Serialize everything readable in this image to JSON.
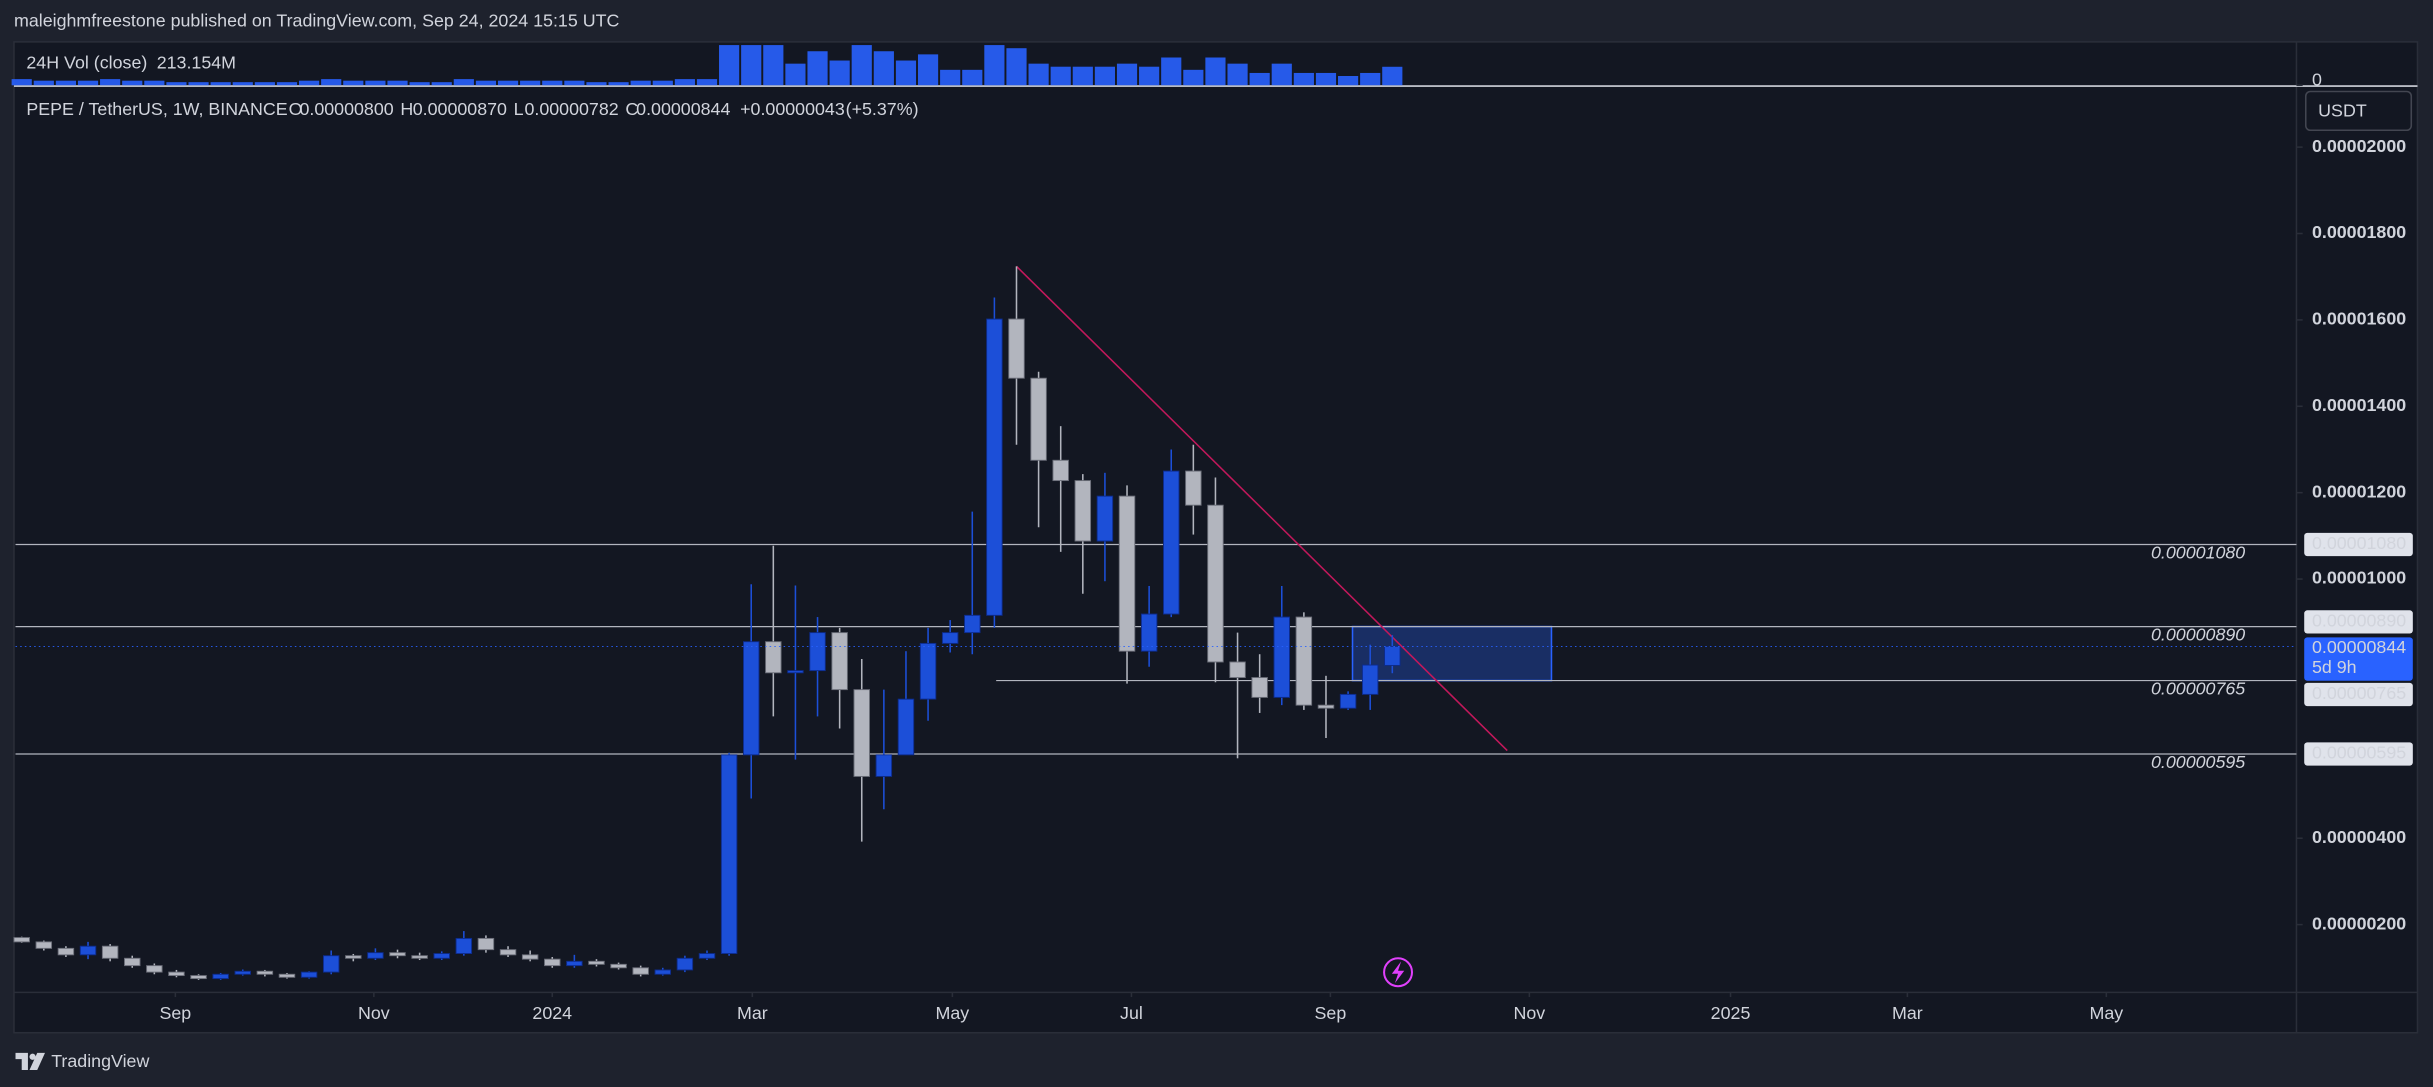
{
  "header": "maleighmfreestone published on TradingView.com, Sep 24, 2024 15:15 UTC",
  "footer": "TradingView",
  "chart_data": {
    "type": "candlestick",
    "symbol": "PEPE / TetherUS, 1W, BINANCE",
    "legend": {
      "open_key": "O",
      "open": {
        "value": 8e-06,
        "label": "0.00000800"
      },
      "high_key": "H",
      "high": {
        "value": 8.7e-06,
        "label": "0.00000870"
      },
      "low_key": "L",
      "low": {
        "value": 7.82e-06,
        "label": "0.00000782"
      },
      "close_key": "C",
      "close": {
        "value": 8.44e-06,
        "label": "0.00000844"
      },
      "change": {
        "value": 4.3e-07,
        "label": "+0.00000043"
      },
      "change_percent": {
        "value": 5.37,
        "label": "(+5.37%)"
      }
    },
    "currency": "USDT",
    "countdown": "5d 9h",
    "up_color": "#1c4fd8",
    "down_color": "#b2b5be",
    "open": [
      1.7e-06,
      1.6e-06,
      1.45e-06,
      1.3e-06,
      1.5e-06,
      1.22e-06,
      1.05e-06,
      9e-07,
      8.2e-07,
      7.5e-07,
      8.5e-07,
      9.2e-07,
      8.5e-07,
      7.8e-07,
      9e-07,
      1.28e-06,
      1.22e-06,
      1.35e-06,
      1.28e-06,
      1.22e-06,
      1.33e-06,
      1.68e-06,
      1.42e-06,
      1.3e-06,
      1.2e-06,
      1.05e-06,
      1.15e-06,
      1.08e-06,
      1e-06,
      8.5e-07,
      9.5e-07,
      1.22e-06,
      1.33e-06,
      5.93e-06,
      8.55e-06,
      7.83e-06,
      7.88e-06,
      8.76e-06,
      7.44e-06,
      5.43e-06,
      5.93e-06,
      7.22e-06,
      8.51e-06,
      8.76e-06,
      9.16e-06,
      1.602e-05,
      1.465e-05,
      1.275e-05,
      1.228e-05,
      1.088e-05,
      1.192e-05,
      8.33e-06,
      9.19e-06,
      1.25e-05,
      1.171e-05,
      8.08e-06,
      7.72e-06,
      7.26e-06,
      9.12e-06,
      7.08e-06,
      7.01e-06,
      7.33e-06,
      8e-06
    ],
    "high": [
      1.72e-06,
      1.63e-06,
      1.5e-06,
      1.6e-06,
      1.55e-06,
      1.28e-06,
      1.1e-06,
      9.5e-07,
      8.5e-07,
      8.8e-07,
      9.6e-07,
      9.5e-07,
      8.8e-07,
      9.2e-07,
      1.4e-06,
      1.32e-06,
      1.45e-06,
      1.42e-06,
      1.35e-06,
      1.38e-06,
      1.85e-06,
      1.75e-06,
      1.5e-06,
      1.4e-06,
      1.25e-06,
      1.3e-06,
      1.2e-06,
      1.12e-06,
      1.05e-06,
      1e-06,
      1.28e-06,
      1.4e-06,
      5.98e-06,
      9.88e-06,
      1.077e-05,
      9.85e-06,
      9.12e-06,
      8.87e-06,
      8.15e-06,
      7.44e-06,
      8.33e-06,
      8.87e-06,
      9.05e-06,
      1.156e-05,
      1.652e-05,
      1.724e-05,
      1.48e-05,
      1.354e-05,
      1.243e-05,
      1.246e-05,
      1.217e-05,
      9.84e-06,
      1.3e-05,
      1.311e-05,
      1.235e-05,
      8.76e-06,
      8.26e-06,
      9.84e-06,
      9.23e-06,
      7.76e-06,
      7.4e-06,
      8.48e-06,
      8.7e-06
    ],
    "low": [
      1.58e-06,
      1.4e-06,
      1.25e-06,
      1.2e-06,
      1.15e-06,
      1e-06,
      8.5e-07,
      7.8e-07,
      7.2e-07,
      7.2e-07,
      8.2e-07,
      8e-07,
      7.5e-07,
      7.5e-07,
      8.5e-07,
      1.15e-06,
      1.18e-06,
      1.22e-06,
      1.18e-06,
      1.18e-06,
      1.28e-06,
      1.35e-06,
      1.25e-06,
      1.15e-06,
      1e-06,
      1e-06,
      1.03e-06,
      9.6e-07,
      8e-07,
      8.2e-07,
      9e-07,
      1.18e-06,
      1.28e-06,
      4.92e-06,
      6.82e-06,
      5.82e-06,
      6.82e-06,
      6.54e-06,
      3.92e-06,
      4.67e-06,
      5.93e-06,
      6.72e-06,
      8.3e-06,
      8.26e-06,
      8.87e-06,
      1.311e-05,
      1.12e-05,
      1.063e-05,
      9.66e-06,
      9.95e-06,
      7.58e-06,
      7.97e-06,
      9.12e-06,
      1.103e-05,
      7.61e-06,
      5.85e-06,
      6.9e-06,
      7.08e-06,
      6.97e-06,
      6.32e-06,
      6.97e-06,
      6.97e-06,
      7.82e-06
    ],
    "close": [
      1.6e-06,
      1.45e-06,
      1.3e-06,
      1.5e-06,
      1.22e-06,
      1.05e-06,
      9e-07,
      8.2e-07,
      7.5e-07,
      8.5e-07,
      9.2e-07,
      8.5e-07,
      7.8e-07,
      9e-07,
      1.28e-06,
      1.22e-06,
      1.35e-06,
      1.28e-06,
      1.22e-06,
      1.33e-06,
      1.68e-06,
      1.42e-06,
      1.3e-06,
      1.2e-06,
      1.05e-06,
      1.15e-06,
      1.08e-06,
      1e-06,
      8.5e-07,
      9.5e-07,
      1.22e-06,
      1.33e-06,
      5.93e-06,
      8.55e-06,
      7.83e-06,
      7.88e-06,
      8.76e-06,
      7.44e-06,
      5.43e-06,
      5.93e-06,
      7.22e-06,
      8.51e-06,
      8.76e-06,
      9.16e-06,
      1.602e-05,
      1.465e-05,
      1.275e-05,
      1.228e-05,
      1.088e-05,
      1.192e-05,
      8.33e-06,
      9.19e-06,
      1.25e-05,
      1.171e-05,
      8.08e-06,
      7.72e-06,
      7.26e-06,
      9.12e-06,
      7.08e-06,
      7.01e-06,
      7.33e-06,
      8.01e-06,
      8.44e-06
    ],
    "xlim": [
      -0.28,
      102.9
    ],
    "xticks": [
      {
        "value": 6.95,
        "label": "Sep"
      },
      {
        "value": 15.93,
        "label": "Nov"
      },
      {
        "value": 24.0,
        "label": "2024"
      },
      {
        "value": 33.05,
        "label": "Mar"
      },
      {
        "value": 42.1,
        "label": "May"
      },
      {
        "value": 50.2,
        "label": "Jul"
      },
      {
        "value": 59.2,
        "label": "Sep"
      },
      {
        "value": 68.2,
        "label": "Nov"
      },
      {
        "value": 77.3,
        "label": "2025"
      },
      {
        "value": 85.3,
        "label": "Mar"
      },
      {
        "value": 94.3,
        "label": "May"
      }
    ],
    "ylim": [
      4.3e-07,
      2.136e-05
    ],
    "yticks": [
      {
        "value": 2e-06,
        "label": "0.00000200"
      },
      {
        "value": 4e-06,
        "label": "0.00000400"
      },
      {
        "value": 1e-05,
        "label": "0.00001000"
      },
      {
        "value": 1.2e-05,
        "label": "0.00001200"
      },
      {
        "value": 1.4e-05,
        "label": "0.00001400"
      },
      {
        "value": 1.6e-05,
        "label": "0.00001600"
      },
      {
        "value": 1.8e-05,
        "label": "0.00001800"
      },
      {
        "value": 2e-05,
        "label": "0.00002000"
      }
    ],
    "grid": false,
    "hlines": [
      {
        "value": 1.08e-05,
        "label": "0.00001080"
      },
      {
        "value": 8.9e-06,
        "label": "0.00000890"
      },
      {
        "value": 7.65e-06,
        "label": "0.00000765"
      },
      {
        "value": 5.95e-06,
        "label": "0.00000595"
      }
    ],
    "trendline": {
      "x": [
        45,
        67.2
      ],
      "y": [
        1.724e-05,
        6.03e-06
      ],
      "color": "#c2185b"
    },
    "zone": {
      "x": [
        60.2,
        69.2
      ],
      "y": [
        8.9e-06,
        7.65e-06
      ],
      "color": "#2962ff"
    },
    "volume": {
      "name": "24H Vol (close)",
      "color": "#2962ff",
      "ylim": [
        0,
        500
      ],
      "yticks": [
        0
      ],
      "values": [
        71,
        53,
        53,
        53,
        71,
        53,
        53,
        36,
        36,
        36,
        36,
        36,
        36,
        53,
        71,
        53,
        53,
        53,
        36,
        36,
        71,
        53,
        53,
        53,
        53,
        53,
        36,
        36,
        53,
        53,
        71,
        71,
        463,
        463,
        463,
        249,
        392,
        285,
        463,
        392,
        285,
        356,
        178,
        178,
        463,
        427,
        249,
        214,
        214,
        214,
        249,
        214,
        320,
        178,
        320,
        249,
        142,
        249,
        142,
        142,
        107,
        142,
        213.154
      ],
      "value_labels": [
        null,
        null,
        null,
        null,
        null,
        null,
        null,
        null,
        null,
        null,
        null,
        null,
        null,
        null,
        null,
        null,
        null,
        null,
        null,
        null,
        null,
        null,
        null,
        null,
        null,
        null,
        null,
        null,
        null,
        null,
        null,
        null,
        null,
        null,
        null,
        null,
        null,
        null,
        null,
        null,
        null,
        null,
        null,
        null,
        null,
        null,
        null,
        null,
        null,
        null,
        null,
        null,
        null,
        null,
        null,
        null,
        null,
        null,
        null,
        null,
        null,
        null,
        "213.154M"
      ]
    }
  }
}
